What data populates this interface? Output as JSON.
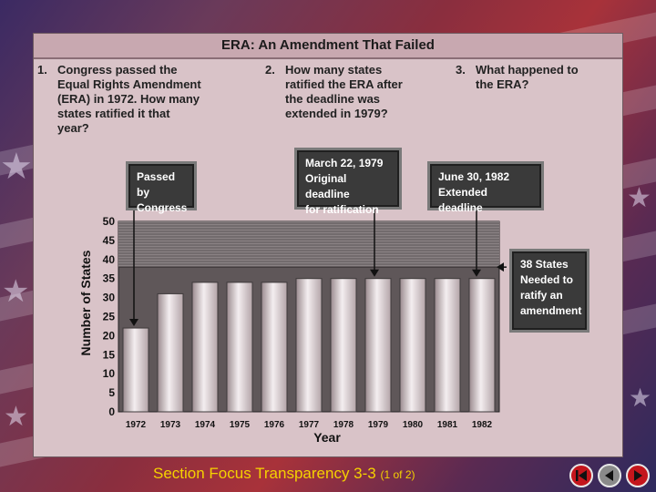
{
  "title": "ERA: An Amendment That Failed",
  "questions": [
    {
      "num": "1.",
      "text": "Congress passed the\nEqual Rights Amendment\n(ERA) in 1972. How many\nstates ratified it that\nyear?"
    },
    {
      "num": "2.",
      "text": "How many states\nratified the ERA after\nthe deadline was\nextended in 1979?"
    },
    {
      "num": "3.",
      "text": "What happened to\nthe ERA?"
    }
  ],
  "callouts": {
    "passed": "Passed by\nCongress",
    "original_deadline": "March 22, 1979\nOriginal deadline\nfor ratification",
    "extended_deadline": "June 30, 1982\nExtended deadline",
    "needed": "38 States\nNeeded to\nratify an\namendment"
  },
  "chart_data": {
    "type": "bar",
    "categories": [
      "1972",
      "1973",
      "1974",
      "1975",
      "1976",
      "1977",
      "1978",
      "1979",
      "1980",
      "1981",
      "1982"
    ],
    "values": [
      22,
      31,
      34,
      34,
      34,
      35,
      35,
      35,
      35,
      35,
      35
    ],
    "xlabel": "Year",
    "ylabel": "Number of States",
    "ylim": [
      0,
      50
    ],
    "yticks": [
      0,
      5,
      10,
      15,
      20,
      25,
      30,
      35,
      40,
      45,
      50
    ],
    "reference_line": 38,
    "grid": false
  },
  "footer": {
    "main": "Section Focus Transparency 3-3",
    "sub": "(1 of 2)"
  },
  "nav": [
    "first-slide-icon",
    "previous-slide-icon",
    "next-slide-icon"
  ],
  "colors": {
    "footer": "#f5d200",
    "nav_first": "#c4161c",
    "nav_prev": "#8a8a8a",
    "nav_next": "#c4161c"
  }
}
